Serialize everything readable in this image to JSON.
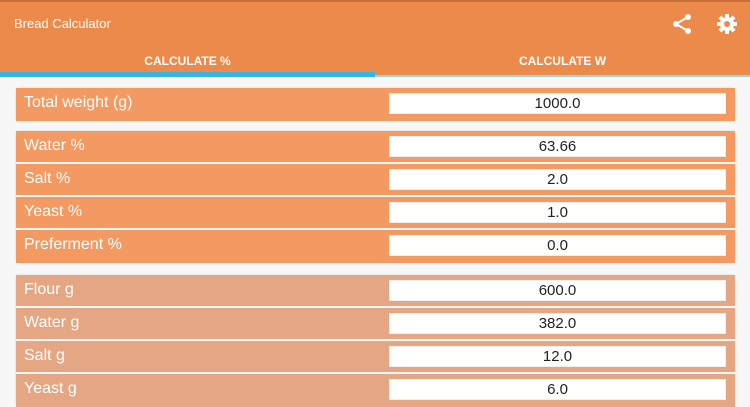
{
  "app": {
    "title": "Bread Calculator"
  },
  "tabs": [
    {
      "label": "CALCULATE %",
      "active": true
    },
    {
      "label": "CALCULATE W",
      "active": false
    }
  ],
  "colors": {
    "appbar": "#ec8a4b",
    "indicator": "#3bb3e0",
    "input_rows": "#f39a63",
    "output_rows": "#e5a783"
  },
  "total": {
    "label": "Total weight (g)",
    "value": "1000.0"
  },
  "percents": [
    {
      "label": "Water %",
      "value": "63.66"
    },
    {
      "label": "Salt %",
      "value": "2.0"
    },
    {
      "label": "Yeast %",
      "value": "1.0"
    },
    {
      "label": "Preferment %",
      "value": "0.0"
    }
  ],
  "weights": [
    {
      "label": "Flour g",
      "value": "600.0"
    },
    {
      "label": "Water g",
      "value": "382.0"
    },
    {
      "label": "Salt g",
      "value": "12.0"
    },
    {
      "label": "Yeast g",
      "value": "6.0"
    }
  ]
}
